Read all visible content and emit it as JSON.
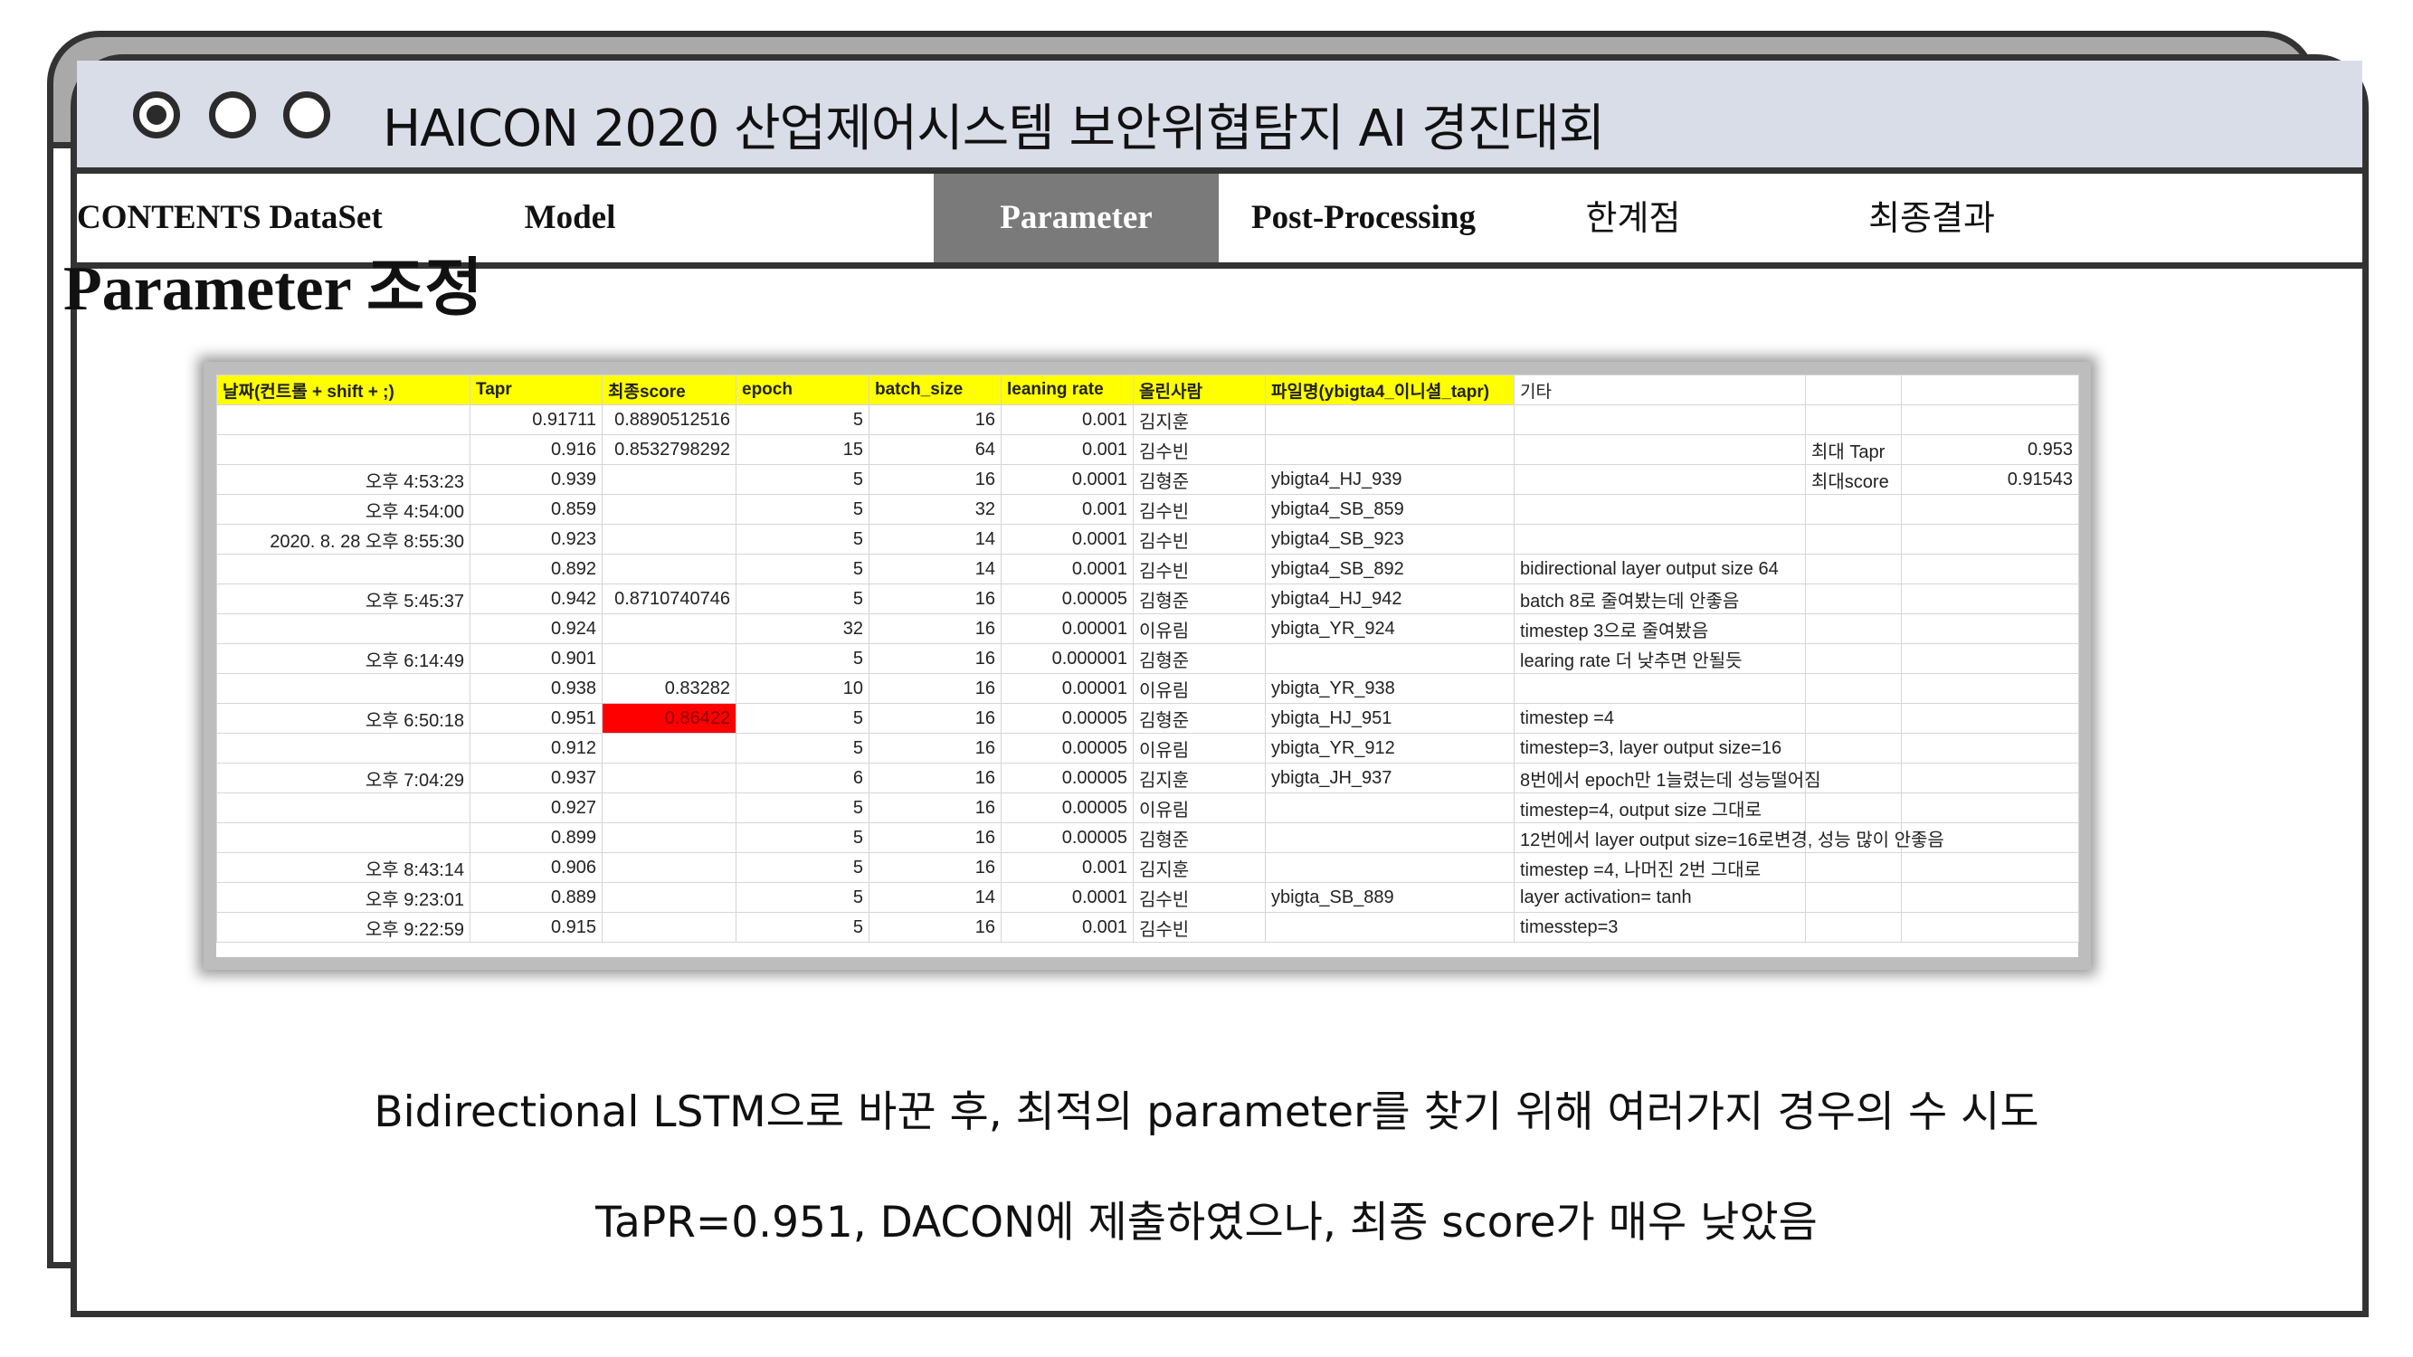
{
  "window": {
    "title": "HAICON 2020 산업제어시스템 보안위협탐지 AI 경진대회"
  },
  "nav": {
    "items": [
      {
        "label": "CONTENTS",
        "active": false
      },
      {
        "label": "DataSet",
        "active": false
      },
      {
        "label": "Model",
        "active": false
      },
      {
        "label": "Parameter",
        "active": true
      },
      {
        "label": "Post-Processing",
        "active": false
      },
      {
        "label": "한계점",
        "active": false
      },
      {
        "label": "최종결과",
        "active": false
      }
    ]
  },
  "page": {
    "title": "Parameter 조정"
  },
  "sheet": {
    "headers": [
      "날짜(컨트롤 + shift + ;)",
      "Tapr",
      "최종score",
      "epoch",
      "batch_size",
      "leaning rate",
      "올린사람",
      "파일명(ybigta4_이니셜_tapr)",
      "기타",
      "",
      ""
    ],
    "rows": [
      [
        "",
        "0.91711",
        "0.8890512516",
        "5",
        "16",
        "0.001",
        "김지훈",
        "",
        "",
        "",
        ""
      ],
      [
        "",
        "0.916",
        "0.8532798292",
        "15",
        "64",
        "0.001",
        "김수빈",
        "",
        "",
        "최대 Tapr",
        "0.953"
      ],
      [
        "오후 4:53:23",
        "0.939",
        "",
        "5",
        "16",
        "0.0001",
        "김형준",
        "ybigta4_HJ_939",
        "",
        "최대score",
        "0.91543"
      ],
      [
        "오후 4:54:00",
        "0.859",
        "",
        "5",
        "32",
        "0.001",
        "김수빈",
        "ybigta4_SB_859",
        "",
        "",
        ""
      ],
      [
        "2020. 8. 28 오후 8:55:30",
        "0.923",
        "",
        "5",
        "14",
        "0.0001",
        "김수빈",
        "ybigta4_SB_923",
        "",
        "",
        ""
      ],
      [
        "",
        "0.892",
        "",
        "5",
        "14",
        "0.0001",
        "김수빈",
        "ybigta4_SB_892",
        "bidirectional layer output size 64",
        "",
        ""
      ],
      [
        "오후 5:45:37",
        "0.942",
        "0.8710740746",
        "5",
        "16",
        "0.00005",
        "김형준",
        "ybigta4_HJ_942",
        "batch 8로 줄여봤는데 안좋음",
        "",
        ""
      ],
      [
        "",
        "0.924",
        "",
        "32",
        "16",
        "0.00001",
        "이유림",
        "ybigta_YR_924",
        "timestep 3으로 줄여봤음",
        "",
        ""
      ],
      [
        "오후 6:14:49",
        "0.901",
        "",
        "5",
        "16",
        "0.000001",
        "김형준",
        "",
        "learing rate 더 낮추면 안될듯",
        "",
        ""
      ],
      [
        "",
        "0.938",
        "0.83282",
        "10",
        "16",
        "0.00001",
        "이유림",
        "ybigta_YR_938",
        "",
        "",
        ""
      ],
      [
        "오후 6:50:18",
        "0.951",
        "0.86422",
        "5",
        "16",
        "0.00005",
        "김형준",
        "ybigta_HJ_951",
        "timestep =4",
        "",
        ""
      ],
      [
        "",
        "0.912",
        "",
        "5",
        "16",
        "0.00005",
        "이유림",
        "ybigta_YR_912",
        "timestep=3, layer output size=16",
        "",
        ""
      ],
      [
        "오후 7:04:29",
        "0.937",
        "",
        "6",
        "16",
        "0.00005",
        "김지훈",
        "ybigta_JH_937",
        "8번에서 epoch만 1늘렸는데 성능떨어짐",
        "",
        ""
      ],
      [
        "",
        "0.927",
        "",
        "5",
        "16",
        "0.00005",
        "이유림",
        "",
        "timestep=4, output size 그대로",
        "",
        ""
      ],
      [
        "",
        "0.899",
        "",
        "5",
        "16",
        "0.00005",
        "김형준",
        "",
        "12번에서 layer output size=16로변경, 성능 많이 안좋음",
        "",
        ""
      ],
      [
        "오후 8:43:14",
        "0.906",
        "",
        "5",
        "16",
        "0.001",
        "김지훈",
        "",
        "timestep =4, 나머진 2번 그대로",
        "",
        ""
      ],
      [
        "오후 9:23:01",
        "0.889",
        "",
        "5",
        "14",
        "0.0001",
        "김수빈",
        "ybigta_SB_889",
        "layer activation= tanh",
        "",
        ""
      ],
      [
        "오후 9:22:59",
        "0.915",
        "",
        "5",
        "16",
        "0.001",
        "김수빈",
        "",
        "timesstep=3",
        "",
        ""
      ]
    ],
    "highlight": {
      "row": 10,
      "col": 2,
      "color": "#ff0000"
    }
  },
  "captions": {
    "line1": "Bidirectional LSTM으로 바꾼 후, 최적의 parameter를 찾기 위해 여러가지 경우의 수 시도",
    "line2": "TaPR=0.951, DACON에 제출하였으나, 최종 score가 매우 낮았음"
  }
}
